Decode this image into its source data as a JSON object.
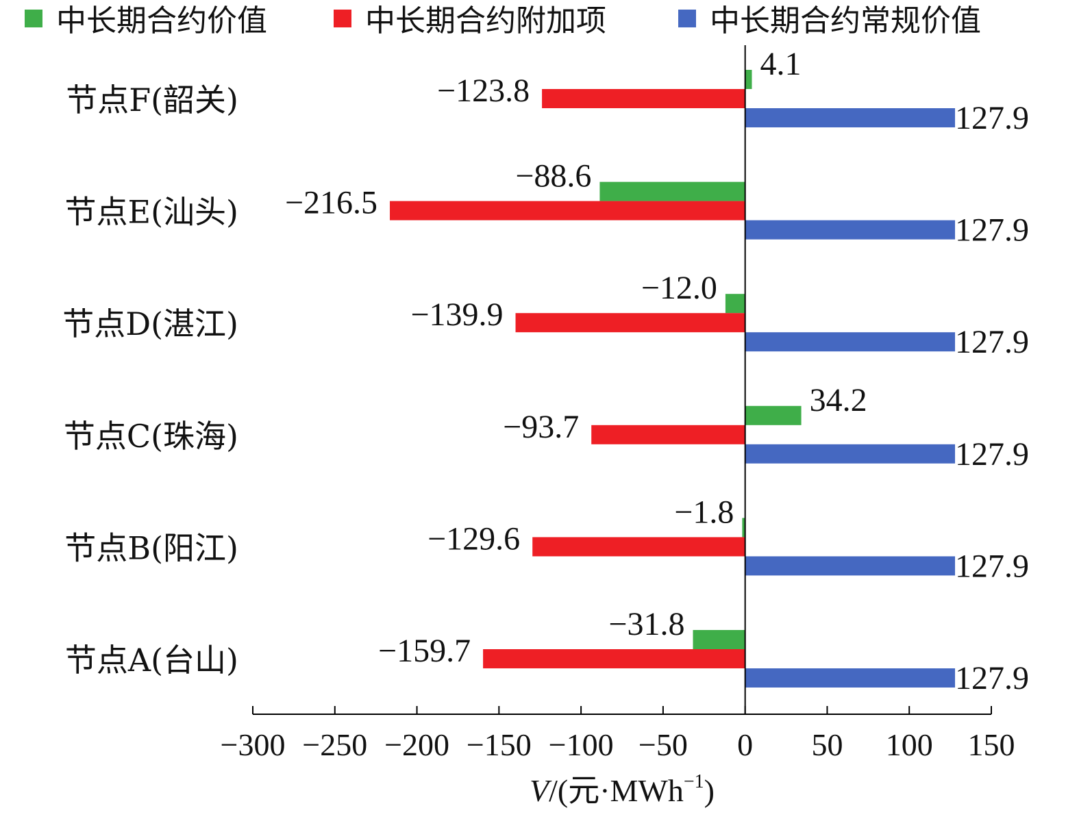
{
  "chart_data": {
    "type": "bar",
    "orientation": "horizontal",
    "categories": [
      "节点A(台山)",
      "节点B(阳江)",
      "节点C(珠海)",
      "节点D(湛江)",
      "节点E(汕头)",
      "节点F(韶关)"
    ],
    "series": [
      {
        "name": "中长期合约价值",
        "color": "#3fae49",
        "values": [
          -31.8,
          -1.8,
          34.2,
          -12.0,
          -88.6,
          4.1
        ],
        "labels": [
          "−31.8",
          "−1.8",
          "34.2",
          "−12.0",
          "−88.6",
          "4.1"
        ]
      },
      {
        "name": "中长期合约附加项",
        "color": "#ee1f25",
        "values": [
          -159.7,
          -129.6,
          -93.7,
          -139.9,
          -216.5,
          -123.8
        ],
        "labels": [
          "−159.7",
          "−129.6",
          "−93.7",
          "−139.9",
          "−216.5",
          "−123.8"
        ]
      },
      {
        "name": "中长期合约常规价值",
        "color": "#4568c1",
        "values": [
          127.9,
          127.9,
          127.9,
          127.9,
          127.9,
          127.9
        ],
        "labels": [
          "127.9",
          "127.9",
          "127.9",
          "127.9",
          "127.9",
          "127.9"
        ]
      }
    ],
    "xlim": [
      -300,
      150
    ],
    "xticks": [
      -300,
      -250,
      -200,
      -150,
      -100,
      -50,
      0,
      50,
      100,
      150
    ],
    "xtick_labels": [
      "−300",
      "−250",
      "−200",
      "−150",
      "−100",
      "−50",
      "0",
      "50",
      "100",
      "150"
    ],
    "xlabel_var": "V",
    "xlabel_unit": "/(元·MWh",
    "xlabel_sup": "−1",
    "xlabel_close": ")",
    "legend_position": "top",
    "grid": false
  }
}
